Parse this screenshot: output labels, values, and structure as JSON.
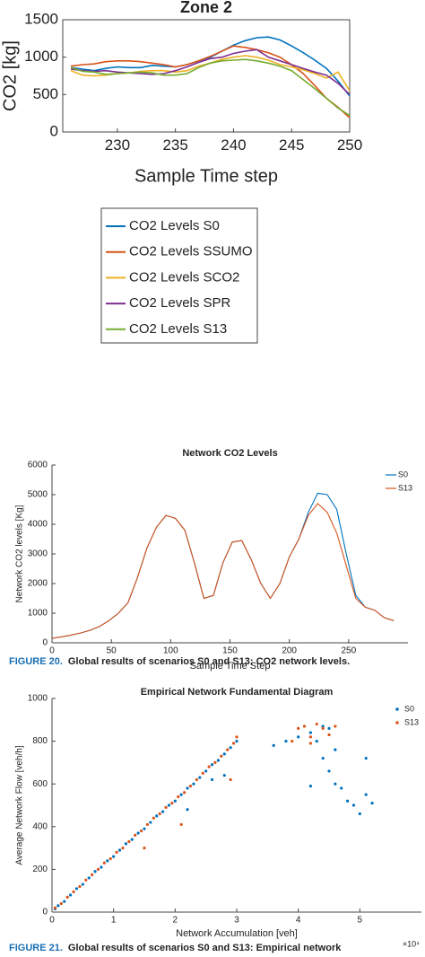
{
  "chart_data": [
    {
      "type": "line",
      "title": "Zone 2",
      "x_label": "Sample Time step",
      "y_label": "CO2 [kg]",
      "x": [
        226,
        227,
        228,
        229,
        230,
        231,
        232,
        233,
        234,
        235,
        236,
        237,
        238,
        239,
        240,
        241,
        242,
        243,
        244,
        245,
        246,
        247,
        248,
        249,
        250
      ],
      "xlim": [
        225.3,
        250
      ],
      "xticks": [
        230,
        235,
        240,
        245,
        250
      ],
      "ylim": [
        0,
        1500
      ],
      "yticks": [
        0,
        500,
        1000,
        1500
      ],
      "legend": "below",
      "series": [
        {
          "name": "CO2 Levels S0",
          "color": "#0072bd",
          "values": [
            860,
            840,
            820,
            850,
            870,
            860,
            860,
            890,
            880,
            870,
            900,
            950,
            1000,
            1080,
            1160,
            1220,
            1260,
            1270,
            1230,
            1150,
            1060,
            960,
            850,
            680,
            480
          ]
        },
        {
          "name": "CO2 Levels SSUMO",
          "color": "#d95319",
          "values": [
            880,
            900,
            910,
            940,
            950,
            950,
            940,
            920,
            900,
            870,
            900,
            950,
            1010,
            1080,
            1150,
            1130,
            1100,
            1060,
            1000,
            900,
            780,
            620,
            450,
            330,
            190
          ]
        },
        {
          "name": "CO2 Levels SCO2",
          "color": "#edb120",
          "values": [
            820,
            760,
            750,
            760,
            780,
            790,
            810,
            820,
            820,
            800,
            820,
            880,
            920,
            970,
            1000,
            1020,
            1000,
            960,
            900,
            870,
            830,
            780,
            720,
            800,
            550
          ]
        },
        {
          "name": "CO2 Levels SPR",
          "color": "#7e2f8e",
          "values": [
            840,
            820,
            810,
            820,
            800,
            790,
            780,
            770,
            780,
            820,
            870,
            930,
            980,
            1000,
            1050,
            1080,
            1100,
            1000,
            950,
            900,
            850,
            800,
            760,
            650,
            500
          ]
        },
        {
          "name": "CO2 Levels S13",
          "color": "#77ac30",
          "values": [
            860,
            810,
            800,
            770,
            780,
            790,
            800,
            790,
            760,
            760,
            780,
            860,
            920,
            950,
            960,
            970,
            950,
            920,
            880,
            820,
            700,
            580,
            450,
            320,
            220
          ]
        }
      ]
    },
    {
      "type": "line",
      "title": "Network CO2 Levels",
      "x_label": "Sample Time Step",
      "y_label": "Network CO2 levels [Kg]",
      "x": [
        0,
        8,
        16,
        24,
        32,
        40,
        48,
        56,
        64,
        72,
        80,
        88,
        96,
        104,
        112,
        120,
        128,
        136,
        144,
        152,
        160,
        168,
        176,
        184,
        192,
        200,
        208,
        216,
        224,
        232,
        240,
        248,
        256,
        264,
        272,
        280,
        288
      ],
      "xlim": [
        0,
        300
      ],
      "xticks": [
        0,
        50,
        100,
        150,
        200,
        250
      ],
      "ylim": [
        0,
        6000
      ],
      "yticks": [
        0,
        1000,
        2000,
        3000,
        4000,
        5000,
        6000
      ],
      "legend": "northeast",
      "series": [
        {
          "name": "S0",
          "color": "#0072bd",
          "values": [
            150,
            200,
            260,
            330,
            420,
            550,
            750,
            1000,
            1350,
            2200,
            3200,
            3900,
            4300,
            4200,
            3800,
            2700,
            1500,
            1600,
            2700,
            3400,
            3450,
            2800,
            2000,
            1500,
            2000,
            2900,
            3500,
            4400,
            5050,
            5000,
            4500,
            3000,
            1600,
            1200,
            1100,
            850,
            750
          ]
        },
        {
          "name": "S13",
          "color": "#d95319",
          "values": [
            150,
            200,
            260,
            330,
            420,
            550,
            750,
            1000,
            1350,
            2200,
            3200,
            3900,
            4300,
            4200,
            3800,
            2700,
            1500,
            1600,
            2700,
            3400,
            3450,
            2800,
            2000,
            1500,
            2000,
            2900,
            3500,
            4300,
            4700,
            4400,
            3700,
            2600,
            1500,
            1200,
            1100,
            850,
            750
          ]
        }
      ]
    },
    {
      "type": "scatter",
      "title": "Empirical Network Fundamental Diagram",
      "x_label": "Network Accumulation [veh]",
      "y_label": "Average Network Flow [veh/h]",
      "x_exponent_label": "×10⁴",
      "xlim": [
        0,
        6
      ],
      "xticks": [
        0,
        1,
        2,
        3,
        4,
        5
      ],
      "ylim": [
        0,
        1000
      ],
      "yticks": [
        0,
        200,
        400,
        600,
        800,
        1000
      ],
      "legend": "northeast",
      "series": [
        {
          "name": "S0",
          "color": "#0072bd",
          "x": [
            0.05,
            0.1,
            0.2,
            0.3,
            0.4,
            0.5,
            0.6,
            0.7,
            0.8,
            0.9,
            1.0,
            1.1,
            1.2,
            1.3,
            1.4,
            1.5,
            1.6,
            1.7,
            1.8,
            1.9,
            2.0,
            2.1,
            2.2,
            2.3,
            2.4,
            2.5,
            2.6,
            2.7,
            2.8,
            2.9,
            3.0,
            2.8,
            2.6,
            2.2,
            3.6,
            3.8,
            4.0,
            4.2,
            4.4,
            4.5,
            4.3,
            4.6,
            4.4,
            4.5,
            4.6,
            4.2,
            4.7,
            4.8,
            4.9,
            5.0,
            5.1,
            5.2,
            5.1
          ],
          "values": [
            15,
            30,
            50,
            80,
            110,
            130,
            160,
            190,
            210,
            240,
            260,
            290,
            320,
            340,
            370,
            390,
            420,
            450,
            470,
            500,
            520,
            550,
            580,
            600,
            630,
            660,
            690,
            710,
            740,
            770,
            800,
            640,
            620,
            480,
            780,
            800,
            820,
            840,
            870,
            860,
            800,
            760,
            720,
            660,
            600,
            590,
            580,
            520,
            500,
            460,
            550,
            510,
            720
          ]
        },
        {
          "name": "S13",
          "color": "#d95319",
          "x": [
            0.05,
            0.15,
            0.25,
            0.35,
            0.45,
            0.55,
            0.65,
            0.75,
            0.85,
            0.95,
            1.05,
            1.15,
            1.25,
            1.35,
            1.45,
            1.55,
            1.65,
            1.75,
            1.85,
            1.95,
            2.05,
            2.15,
            2.25,
            2.35,
            2.45,
            2.55,
            2.65,
            2.75,
            2.85,
            2.95,
            3.0,
            2.9,
            2.1,
            1.5,
            3.9,
            4.0,
            4.1,
            4.2,
            4.3,
            4.4,
            4.5,
            4.6,
            4.2
          ],
          "values": [
            20,
            40,
            70,
            95,
            120,
            150,
            175,
            200,
            230,
            250,
            280,
            300,
            330,
            360,
            380,
            410,
            440,
            460,
            490,
            510,
            540,
            560,
            590,
            620,
            650,
            680,
            700,
            730,
            760,
            790,
            820,
            620,
            410,
            300,
            800,
            860,
            870,
            820,
            880,
            860,
            830,
            870,
            790
          ]
        }
      ]
    }
  ],
  "figure_captions": [
    {
      "label": "FIGURE 20.",
      "text": "Global results of scenarios S0 and S13: CO2 network levels."
    },
    {
      "label": "FIGURE 21.",
      "text": "Global results of scenarios S0 and S13: Empirical network"
    }
  ]
}
